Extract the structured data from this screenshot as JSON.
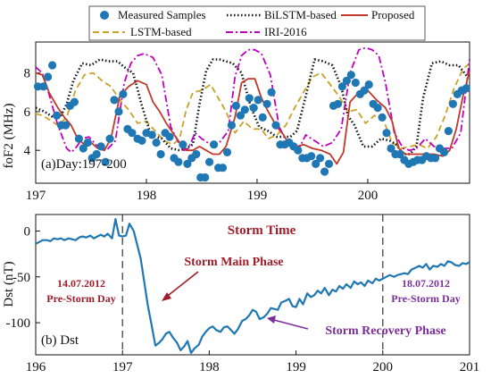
{
  "chart_data": [
    {
      "type": "line",
      "panel_label": "(a)Day:197-200",
      "xlabel": "",
      "ylabel": "foF2 (MHz)",
      "xlim": [
        197,
        200.92
      ],
      "ylim": [
        2.3,
        9.6
      ],
      "x_ticks": [
        "197",
        "198",
        "199",
        "200"
      ],
      "y_ticks": [
        "4",
        "6",
        "8"
      ],
      "legend_position": "top-center, above plot",
      "series": [
        {
          "name": "Measured Samples",
          "style": "scatter",
          "color": "#1f77b4",
          "x": [
            197.02,
            197.07,
            197.11,
            197.15,
            197.19,
            197.23,
            197.27,
            197.31,
            197.35,
            197.39,
            197.43,
            197.47,
            197.51,
            197.55,
            197.59,
            197.63,
            197.67,
            197.71,
            197.75,
            197.79,
            197.83,
            197.87,
            197.92,
            197.96,
            198.0,
            198.05,
            198.09,
            198.13,
            198.17,
            198.21,
            198.25,
            198.29,
            198.33,
            198.37,
            198.41,
            198.45,
            198.49,
            198.53,
            198.57,
            198.61,
            198.65,
            198.69,
            198.73,
            198.77,
            198.81,
            198.85,
            198.89,
            198.93,
            198.97,
            199.01,
            199.05,
            199.09,
            199.13,
            199.17,
            199.21,
            199.25,
            199.29,
            199.33,
            199.37,
            199.41,
            199.45,
            199.49,
            199.53,
            199.57,
            199.61,
            199.65,
            199.69,
            199.73,
            199.77,
            199.81,
            199.85,
            199.89,
            199.93,
            199.97,
            200.01,
            200.05,
            200.09,
            200.13,
            200.17,
            200.21,
            200.25,
            200.29,
            200.33,
            200.37,
            200.41,
            200.45,
            200.49,
            200.53,
            200.57,
            200.61,
            200.65,
            200.69,
            200.73,
            200.77,
            200.81,
            200.85,
            200.89
          ],
          "y": [
            7.3,
            7.3,
            7.8,
            8.4,
            5.8,
            5.3,
            5.3,
            6.3,
            6.5,
            4.6,
            4.1,
            4.4,
            3.6,
            3.8,
            4.2,
            3.4,
            4.6,
            6.6,
            6.0,
            6.9,
            5.1,
            4.9,
            4.6,
            4.5,
            4.9,
            4.8,
            4.4,
            3.8,
            4.9,
            4.7,
            3.6,
            3.4,
            4.3,
            3.3,
            3.6,
            3.8,
            2.6,
            2.6,
            3.4,
            4.3,
            3.1,
            3.1,
            3.9,
            5.3,
            6.3,
            5.8,
            6.1,
            6.7,
            6.2,
            6.6,
            5.7,
            6.4,
            7.0,
            5.3,
            4.3,
            4.3,
            4.4,
            4.2,
            4.0,
            3.6,
            3.6,
            3.7,
            3.3,
            3.6,
            2.9,
            3.3,
            6.3,
            6.4,
            7.3,
            7.6,
            7.9,
            7.5,
            6.9,
            7.1,
            7.4,
            6.4,
            6.2,
            5.7,
            4.9,
            4.1,
            3.8,
            3.8,
            3.5,
            3.3,
            3.4,
            3.5,
            3.5,
            3.7,
            3.6,
            3.6,
            4.1,
            3.9,
            5.0,
            6.4,
            6.9,
            7.1,
            7.2
          ]
        },
        {
          "name": "BiLSTM-based",
          "style": "dotted",
          "color": "#111111",
          "x": [
            197.0,
            197.08,
            197.16,
            197.22,
            197.28,
            197.34,
            197.42,
            197.5,
            197.58,
            197.66,
            197.74,
            197.8,
            197.88,
            197.96,
            198.04,
            198.14,
            198.22,
            198.3,
            198.36,
            198.42,
            198.48,
            198.54,
            198.6,
            198.66,
            198.72,
            198.78,
            198.86,
            198.94,
            199.02,
            199.1,
            199.18,
            199.24,
            199.3,
            199.36,
            199.44,
            199.52,
            199.6,
            199.68,
            199.76,
            199.82,
            199.88,
            199.96,
            200.04,
            200.12,
            200.2,
            200.26,
            200.32,
            200.38,
            200.44,
            200.5,
            200.58,
            200.66,
            200.74,
            200.82,
            200.9
          ],
          "y": [
            6.2,
            6.0,
            5.7,
            5.7,
            6.4,
            7.6,
            8.5,
            8.4,
            8.7,
            8.6,
            8.6,
            8.3,
            8.0,
            6.3,
            4.8,
            4.6,
            4.1,
            4.0,
            4.1,
            4.3,
            6.4,
            8.1,
            8.7,
            8.7,
            8.6,
            8.5,
            8.0,
            6.3,
            5.2,
            5.0,
            4.7,
            4.7,
            4.7,
            5.0,
            6.8,
            8.7,
            8.6,
            8.4,
            7.3,
            5.8,
            5.3,
            4.2,
            4.2,
            4.6,
            4.5,
            4.3,
            3.8,
            3.8,
            4.2,
            6.7,
            8.5,
            8.6,
            8.4,
            8.4,
            7.8
          ]
        },
        {
          "name": "LSTM-based",
          "style": "dashed",
          "color": "#c9a227",
          "x": [
            197.0,
            197.06,
            197.12,
            197.2,
            197.28,
            197.36,
            197.44,
            197.52,
            197.6,
            197.68,
            197.76,
            197.84,
            197.92,
            198.0,
            198.08,
            198.16,
            198.24,
            198.3,
            198.36,
            198.42,
            198.5,
            198.58,
            198.66,
            198.72,
            198.8,
            198.88,
            198.96,
            199.04,
            199.1,
            199.18,
            199.26,
            199.34,
            199.42,
            199.5,
            199.58,
            199.66,
            199.74,
            199.82,
            199.9,
            199.98,
            200.06,
            200.14,
            200.22,
            200.3,
            200.38,
            200.46,
            200.54,
            200.62,
            200.7,
            200.78,
            200.86,
            200.92
          ],
          "y": [
            5.9,
            5.8,
            5.6,
            5.3,
            5.7,
            7.1,
            7.9,
            8.0,
            7.6,
            7.3,
            6.6,
            6.1,
            5.4,
            5.5,
            5.0,
            4.5,
            4.3,
            4.6,
            6.1,
            7.0,
            7.1,
            7.4,
            6.6,
            6.0,
            4.9,
            5.5,
            5.1,
            5.1,
            4.6,
            4.8,
            5.3,
            6.2,
            7.0,
            7.8,
            8.0,
            7.4,
            6.8,
            6.0,
            6.1,
            5.4,
            5.8,
            5.6,
            4.4,
            4.1,
            4.2,
            4.3,
            4.1,
            4.7,
            5.8,
            7.2,
            8.2,
            8.5
          ]
        },
        {
          "name": "IRI-2016",
          "style": "dashdot",
          "color": "#c000c0",
          "x": [
            197.0,
            197.06,
            197.12,
            197.2,
            197.28,
            197.32,
            197.36,
            197.42,
            197.48,
            197.56,
            197.64,
            197.72,
            197.8,
            197.86,
            197.92,
            197.98,
            198.06,
            198.14,
            198.22,
            198.3,
            198.34,
            198.38,
            198.44,
            198.5,
            198.58,
            198.66,
            198.74,
            198.8,
            198.86,
            198.92,
            198.98,
            199.04,
            199.12,
            199.2,
            199.28,
            199.34,
            199.38,
            199.44,
            199.52,
            199.6,
            199.68,
            199.76,
            199.84,
            199.92,
            199.98,
            200.04,
            200.1,
            200.16,
            200.24,
            200.32,
            200.38,
            200.44,
            200.52,
            200.6,
            200.68,
            200.76,
            200.84,
            200.92
          ],
          "y": [
            8.3,
            8.0,
            6.9,
            5.3,
            4.1,
            3.9,
            4.1,
            4.6,
            4.7,
            4.2,
            4.0,
            4.5,
            7.5,
            8.5,
            8.9,
            9.0,
            8.8,
            7.9,
            5.2,
            4.3,
            4.0,
            4.1,
            4.9,
            4.6,
            4.3,
            4.4,
            5.0,
            7.8,
            8.9,
            9.2,
            9.2,
            9.0,
            7.9,
            5.2,
            4.3,
            4.0,
            4.1,
            4.8,
            4.5,
            4.2,
            4.4,
            5.1,
            8.0,
            9.2,
            9.3,
            9.2,
            8.9,
            7.5,
            4.9,
            4.1,
            4.0,
            4.1,
            4.6,
            4.2,
            4.1,
            4.1,
            4.9,
            8.7
          ]
        },
        {
          "name": "Proposed",
          "style": "solid",
          "color": "#c0392b",
          "x": [
            197.0,
            197.06,
            197.12,
            197.2,
            197.26,
            197.32,
            197.38,
            197.44,
            197.5,
            197.56,
            197.62,
            197.68,
            197.76,
            197.84,
            197.92,
            198.0,
            198.06,
            198.12,
            198.18,
            198.24,
            198.3,
            198.36,
            198.42,
            198.48,
            198.54,
            198.6,
            198.66,
            198.72,
            198.8,
            198.86,
            198.92,
            198.98,
            199.04,
            199.1,
            199.18,
            199.24,
            199.3,
            199.36,
            199.42,
            199.5,
            199.58,
            199.66,
            199.72,
            199.78,
            199.84,
            199.92,
            200.0,
            200.08,
            200.16,
            200.22,
            200.28,
            200.34,
            200.4,
            200.46,
            200.52,
            200.6,
            200.68,
            200.74,
            200.8,
            200.86,
            200.92
          ],
          "y": [
            8.0,
            7.9,
            7.0,
            6.2,
            5.7,
            5.3,
            4.6,
            4.3,
            4.4,
            4.1,
            4.0,
            4.6,
            6.8,
            7.3,
            7.6,
            7.4,
            6.5,
            6.0,
            5.4,
            4.9,
            4.4,
            4.0,
            4.0,
            4.2,
            4.0,
            3.8,
            3.8,
            4.2,
            5.7,
            7.5,
            7.7,
            7.7,
            6.7,
            6.0,
            5.2,
            4.8,
            4.2,
            4.2,
            4.3,
            4.1,
            4.0,
            3.8,
            3.3,
            3.9,
            6.5,
            7.0,
            7.1,
            6.6,
            6.2,
            5.5,
            4.1,
            3.8,
            3.8,
            3.8,
            3.8,
            3.8,
            3.7,
            4.0,
            5.1,
            6.8,
            8.1
          ]
        }
      ]
    },
    {
      "type": "line",
      "panel_label": "(b) Dst",
      "xlabel": "",
      "ylabel": "Dst (nT)",
      "xlim": [
        196,
        201
      ],
      "ylim": [
        -135,
        18
      ],
      "x_ticks": [
        "196",
        "197",
        "198",
        "199",
        "200",
        "201"
      ],
      "y_ticks": [
        "0",
        "-50",
        "-100"
      ],
      "vlines": [
        197,
        200
      ],
      "series": [
        {
          "name": "Dst",
          "color": "#1f77b4",
          "x": [
            196.0,
            196.04,
            196.08,
            196.13,
            196.17,
            196.21,
            196.25,
            196.29,
            196.33,
            196.38,
            196.42,
            196.46,
            196.5,
            196.54,
            196.58,
            196.63,
            196.67,
            196.71,
            196.75,
            196.79,
            196.83,
            196.88,
            196.92,
            196.96,
            197.0,
            197.04,
            197.08,
            197.13,
            197.17,
            197.21,
            197.25,
            197.29,
            197.33,
            197.38,
            197.42,
            197.46,
            197.5,
            197.54,
            197.58,
            197.63,
            197.67,
            197.71,
            197.75,
            197.79,
            197.83,
            197.88,
            197.92,
            197.96,
            198.0,
            198.04,
            198.08,
            198.13,
            198.17,
            198.21,
            198.25,
            198.29,
            198.33,
            198.38,
            198.42,
            198.46,
            198.5,
            198.54,
            198.58,
            198.63,
            198.67,
            198.71,
            198.75,
            198.79,
            198.83,
            198.88,
            198.92,
            198.96,
            199.0,
            199.04,
            199.08,
            199.13,
            199.17,
            199.21,
            199.25,
            199.29,
            199.33,
            199.38,
            199.42,
            199.46,
            199.5,
            199.54,
            199.58,
            199.63,
            199.67,
            199.71,
            199.75,
            199.79,
            199.83,
            199.88,
            199.92,
            199.96,
            200.0,
            200.04,
            200.08,
            200.13,
            200.17,
            200.21,
            200.25,
            200.29,
            200.33,
            200.38,
            200.42,
            200.46,
            200.5,
            200.54,
            200.58,
            200.63,
            200.67,
            200.71,
            200.75,
            200.79,
            200.83,
            200.88,
            200.92,
            200.96,
            201.0
          ],
          "y": [
            -14,
            -12,
            -10,
            -10,
            -11,
            -8,
            -9,
            -8,
            -10,
            -8,
            -9,
            -10,
            -7,
            -6,
            -7,
            -5,
            -8,
            -6,
            -4,
            -6,
            -3,
            -8,
            13,
            -5,
            -6,
            -5,
            8,
            0,
            -15,
            -30,
            -55,
            -80,
            -100,
            -125,
            -122,
            -118,
            -112,
            -110,
            -116,
            -122,
            -130,
            -126,
            -120,
            -133,
            -128,
            -124,
            -115,
            -110,
            -106,
            -104,
            -108,
            -110,
            -105,
            -104,
            -108,
            -112,
            -107,
            -98,
            -96,
            -92,
            -86,
            -88,
            -96,
            -94,
            -90,
            -84,
            -85,
            -86,
            -78,
            -76,
            -74,
            -82,
            -83,
            -74,
            -80,
            -68,
            -72,
            -70,
            -65,
            -68,
            -62,
            -70,
            -64,
            -66,
            -60,
            -63,
            -58,
            -62,
            -55,
            -58,
            -56,
            -60,
            -54,
            -57,
            -52,
            -54,
            -52,
            -50,
            -48,
            -50,
            -48,
            -47,
            -46,
            -47,
            -42,
            -40,
            -38,
            -40,
            -36,
            -42,
            -38,
            -39,
            -36,
            -38,
            -33,
            -34,
            -37,
            -38,
            -35,
            -36,
            -34
          ]
        }
      ],
      "annotations": {
        "storm_time": "Storm Time",
        "pre_left_date": "14.07.2012",
        "pre_left_label": "Pre-Storm Day",
        "pre_right_date": "18.07.2012",
        "pre_right_label": "Pre-Storm Day",
        "main_phase": "Storm Main Phase",
        "recovery_phase": "Storm Recovery Phase"
      }
    }
  ],
  "colors": {
    "measured": "#1f77b4",
    "bilstm": "#111111",
    "lstm": "#c9a227",
    "iri": "#c000c0",
    "proposed": "#c0392b",
    "dst": "#1f77b4",
    "annotation_red": "#a01c2a",
    "annotation_purple": "#7b2f9a"
  }
}
